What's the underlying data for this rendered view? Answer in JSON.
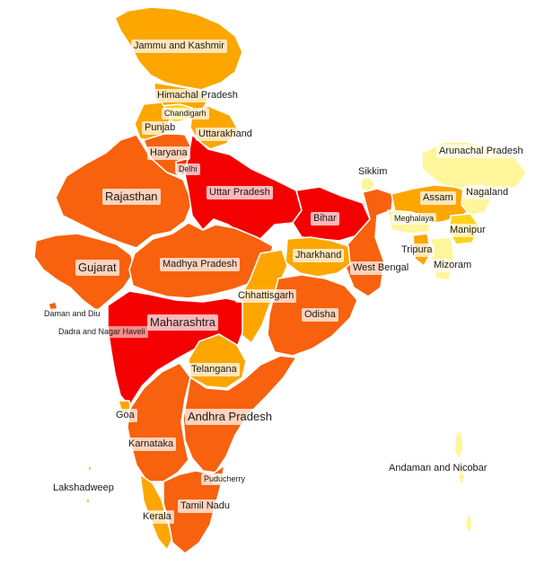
{
  "colors": {
    "red": "#f40000",
    "red_orange": "#f53606",
    "dark_orange": "#f8610d",
    "orange": "#fb8c00",
    "amber": "#fda600",
    "yellow": "#ffd21a",
    "pale_yellow": "#fff59a"
  },
  "labels": {
    "jammu_kashmir": "Jammu and Kashmir",
    "himachal": "Himachal Pradesh",
    "chandigarh": "Chandigarh",
    "punjab": "Punjab",
    "uttarakhand": "Uttarakhand",
    "haryana": "Haryana",
    "delhi": "Delhi",
    "rajasthan": "Rajasthan",
    "uttar_pradesh": "Uttar Pradesh",
    "bihar": "Bihar",
    "sikkim": "Sikkim",
    "arunachal": "Arunachal Pradesh",
    "assam": "Assam",
    "nagaland": "Nagaland",
    "meghalaya": "Meghalaya",
    "manipur": "Manipur",
    "tripura": "Tripura",
    "mizoram": "Mizoram",
    "jharkhand": "Jharkhand",
    "west_bengal": "West Bengal",
    "gujarat": "Gujarat",
    "madhya_pradesh": "Madhya Pradesh",
    "chhattisgarh": "Chhattisgarh",
    "odisha": "Odisha",
    "daman_diu": "Daman and Diu",
    "dadra": "Dadra and Nagar Haveli",
    "maharashtra": "Maharashtra",
    "telangana": "Telangana",
    "goa": "Goa",
    "andhra_pradesh": "Andhra Pradesh",
    "karnataka": "Karnataka",
    "andaman": "Andaman and Nicobar",
    "lakshadweep": "Lakshadweep",
    "puducherry": "Puducherry",
    "tamil_nadu": "Tamil Nadu",
    "kerala": "Kerala"
  }
}
